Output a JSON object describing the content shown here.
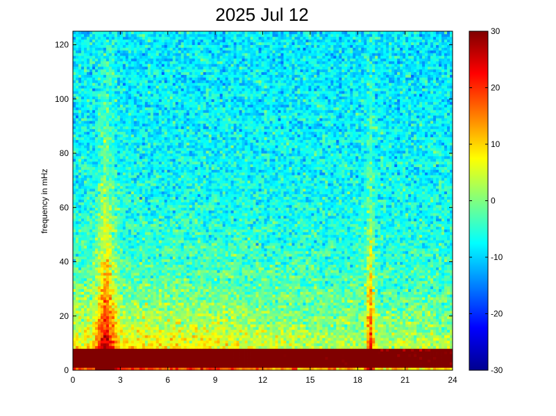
{
  "chart_data": {
    "type": "heatmap",
    "title": "2025 Jul 12",
    "xlabel": "",
    "ylabel": "frequency in mHz",
    "xlim": [
      0,
      24
    ],
    "ylim": [
      0,
      125
    ],
    "xticks": [
      "0",
      "3",
      "6",
      "9",
      "12",
      "15",
      "18",
      "21",
      "24"
    ],
    "yticks": [
      "0",
      "20",
      "40",
      "60",
      "80",
      "100",
      "120"
    ],
    "colorbar": {
      "range": [
        -30,
        30
      ],
      "ticks": [
        "30",
        "20",
        "10",
        "0",
        "-10",
        "-20",
        "-30"
      ],
      "colormap": "jet"
    },
    "features": [
      {
        "description": "low-frequency high-power band",
        "freq_range_mHz": [
          1,
          8
        ],
        "hours": [
          0,
          24
        ],
        "level": 28
      },
      {
        "description": "broadband burst",
        "hour": 2,
        "max_freq_mHz": 90,
        "level": 25
      },
      {
        "description": "broadband burst",
        "hour": 18.8,
        "max_freq_mHz": 85,
        "level": 25
      },
      {
        "description": "enhanced power",
        "hours": [
          1,
          10
        ],
        "freq_range_mHz": [
          8,
          40
        ],
        "level": 15
      }
    ]
  }
}
